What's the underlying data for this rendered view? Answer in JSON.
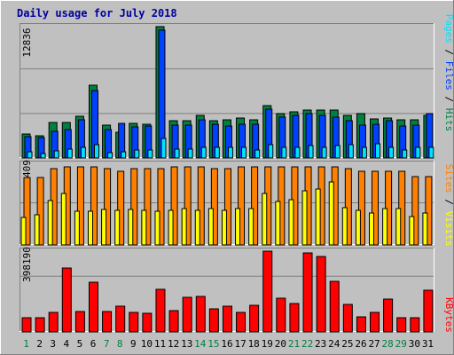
{
  "title": "Daily usage for July 2018",
  "colors": {
    "hits": "#008040",
    "files": "#0040ff",
    "pages": "#00e0ff",
    "visits": "#ffff00",
    "sites": "#ff8000",
    "kbytes": "#ff0000",
    "weekday_label": "#000000",
    "weekend_label": "#008040",
    "panel_bg": "#c0c0c0",
    "frame_bg": "#c0c0c0"
  },
  "right_labels": {
    "pages": "Pages",
    "files": "Files",
    "hits": "Hits",
    "sites": "Sites",
    "visits": "Visits",
    "kbytes": "KBytes",
    "sep": " / "
  },
  "chart_data": [
    {
      "type": "bar",
      "panel": "hits_files_pages",
      "ymax_label": "12836",
      "ylim": [
        0,
        12836
      ],
      "categories": [
        "1",
        "2",
        "3",
        "4",
        "5",
        "6",
        "7",
        "8",
        "9",
        "10",
        "11",
        "12",
        "13",
        "14",
        "15",
        "16",
        "17",
        "18",
        "19",
        "20",
        "21",
        "22",
        "23",
        "24",
        "25",
        "26",
        "27",
        "28",
        "29",
        "30",
        "31"
      ],
      "weekend_days": [
        "1",
        "7",
        "8",
        "14",
        "15",
        "21",
        "22",
        "28",
        "29"
      ],
      "series": [
        {
          "name": "Hits",
          "values": [
            2300,
            2200,
            3500,
            3500,
            4100,
            7100,
            3200,
            2500,
            3400,
            3300,
            12836,
            3600,
            3600,
            4200,
            3600,
            3700,
            3900,
            3700,
            5100,
            4300,
            4500,
            4700,
            4700,
            4700,
            4200,
            4300,
            3800,
            3900,
            3700,
            3700,
            4200
          ]
        },
        {
          "name": "Files",
          "values": [
            2100,
            2000,
            2600,
            2800,
            3700,
            6600,
            2800,
            3400,
            3000,
            3100,
            12500,
            3200,
            3200,
            3700,
            3300,
            3100,
            3300,
            3300,
            4800,
            4000,
            4200,
            4300,
            4200,
            4000,
            3600,
            3200,
            3300,
            3600,
            3100,
            3200,
            4300
          ]
        },
        {
          "name": "Pages",
          "values": [
            600,
            400,
            700,
            900,
            1000,
            1300,
            500,
            600,
            800,
            800,
            1900,
            900,
            900,
            1000,
            1000,
            1000,
            1000,
            800,
            1300,
            1000,
            1000,
            1200,
            1000,
            1200,
            1300,
            1000,
            1400,
            1000,
            800,
            1000,
            1000
          ]
        }
      ]
    },
    {
      "type": "bar",
      "panel": "sites_visits",
      "ymax_label": "409",
      "ylim": [
        0,
        409
      ],
      "categories": [
        "1",
        "2",
        "3",
        "4",
        "5",
        "6",
        "7",
        "8",
        "9",
        "10",
        "11",
        "12",
        "13",
        "14",
        "15",
        "16",
        "17",
        "18",
        "19",
        "20",
        "21",
        "22",
        "23",
        "24",
        "25",
        "26",
        "27",
        "28",
        "29",
        "30",
        "31"
      ],
      "series": [
        {
          "name": "Sites",
          "values": [
            340,
            340,
            385,
            395,
            395,
            395,
            385,
            375,
            385,
            385,
            385,
            395,
            395,
            395,
            385,
            385,
            395,
            395,
            395,
            395,
            395,
            395,
            395,
            395,
            385,
            375,
            375,
            375,
            375,
            345,
            345
          ]
        },
        {
          "name": "Visits",
          "values": [
            140,
            155,
            225,
            260,
            170,
            170,
            180,
            175,
            180,
            175,
            170,
            175,
            185,
            175,
            185,
            175,
            185,
            185,
            260,
            220,
            230,
            275,
            285,
            320,
            190,
            175,
            160,
            185,
            185,
            145,
            160
          ]
        }
      ]
    },
    {
      "type": "bar",
      "panel": "kbytes",
      "ymax_label": "398190",
      "ylim": [
        0,
        398190
      ],
      "categories": [
        "1",
        "2",
        "3",
        "4",
        "5",
        "6",
        "7",
        "8",
        "9",
        "10",
        "11",
        "12",
        "13",
        "14",
        "15",
        "16",
        "17",
        "18",
        "19",
        "20",
        "21",
        "22",
        "23",
        "24",
        "25",
        "26",
        "27",
        "28",
        "29",
        "30",
        "31"
      ],
      "series": [
        {
          "name": "KBytes",
          "values": [
            70000,
            70000,
            95000,
            315000,
            100000,
            245000,
            100000,
            125000,
            95000,
            90000,
            210000,
            105000,
            170000,
            175000,
            115000,
            125000,
            95000,
            130000,
            398190,
            165000,
            140000,
            390000,
            370000,
            250000,
            135000,
            75000,
            95000,
            160000,
            70000,
            70000,
            205000
          ]
        }
      ]
    }
  ]
}
